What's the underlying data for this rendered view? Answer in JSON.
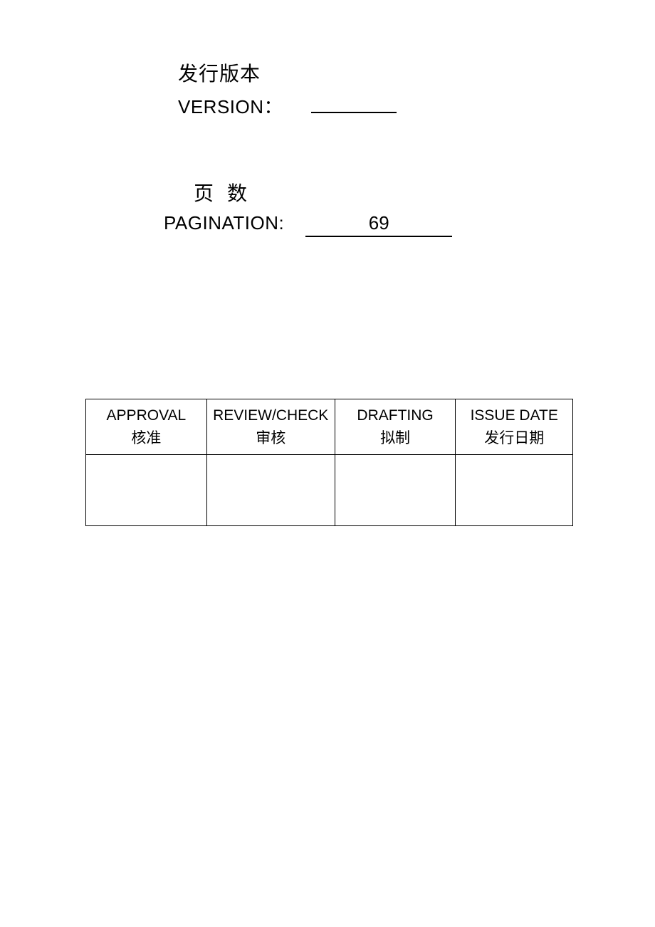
{
  "version": {
    "label_cn": "发行版本",
    "label_en": "VERSION：",
    "value": ""
  },
  "pagination": {
    "label_cn_part1": "页",
    "label_cn_part2": "数",
    "label_en": "PAGINATION:",
    "value": "69"
  },
  "table": {
    "columns": [
      {
        "en": "APPROVAL",
        "cn": "核准"
      },
      {
        "en": "REVIEW/CHECK",
        "cn": "审核"
      },
      {
        "en": "DRAFTING",
        "cn": "拟制"
      },
      {
        "en": "ISSUE DATE",
        "cn": "发行日期"
      }
    ],
    "row": [
      "",
      "",
      "",
      ""
    ]
  },
  "colors": {
    "background": "#ffffff",
    "text": "#000000",
    "border": "#000000"
  },
  "typography": {
    "label_fontsize_cn": 28,
    "label_fontsize_en": 26,
    "table_header_fontsize": 21
  }
}
